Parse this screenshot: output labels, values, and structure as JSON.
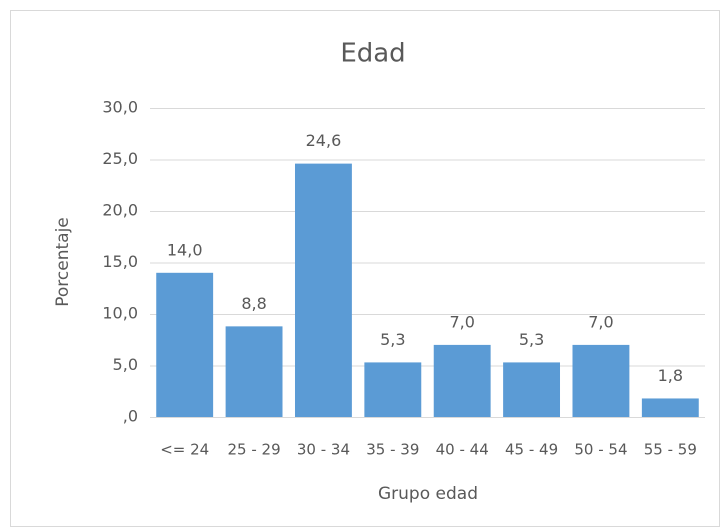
{
  "chart_data": {
    "type": "bar",
    "title": "Edad",
    "y_label": "Porcentaje",
    "x_label": "Grupo edad",
    "categories": [
      "<= 24",
      "25 - 29",
      "30 - 34",
      "35 - 39",
      "40 - 44",
      "45 - 49",
      "50 - 54",
      "55 - 59"
    ],
    "values": [
      14.0,
      8.8,
      24.6,
      5.3,
      7.0,
      5.3,
      7.0,
      1.8
    ],
    "value_labels": [
      "14,0",
      "8,8",
      "24,6",
      "5,3",
      "7,0",
      "5,3",
      "7,0",
      "1,8"
    ],
    "color": "#5b9bd5",
    "ylim": [
      0,
      30
    ],
    "yticks": [
      {
        "value": 0,
        "label": ",0"
      },
      {
        "value": 5,
        "label": "5,0"
      },
      {
        "value": 10,
        "label": "10,0"
      },
      {
        "value": 15,
        "label": "15,0"
      },
      {
        "value": 20,
        "label": "20,0"
      },
      {
        "value": 25,
        "label": "25,0"
      },
      {
        "value": 30,
        "label": "30,0"
      }
    ],
    "grid": true
  }
}
